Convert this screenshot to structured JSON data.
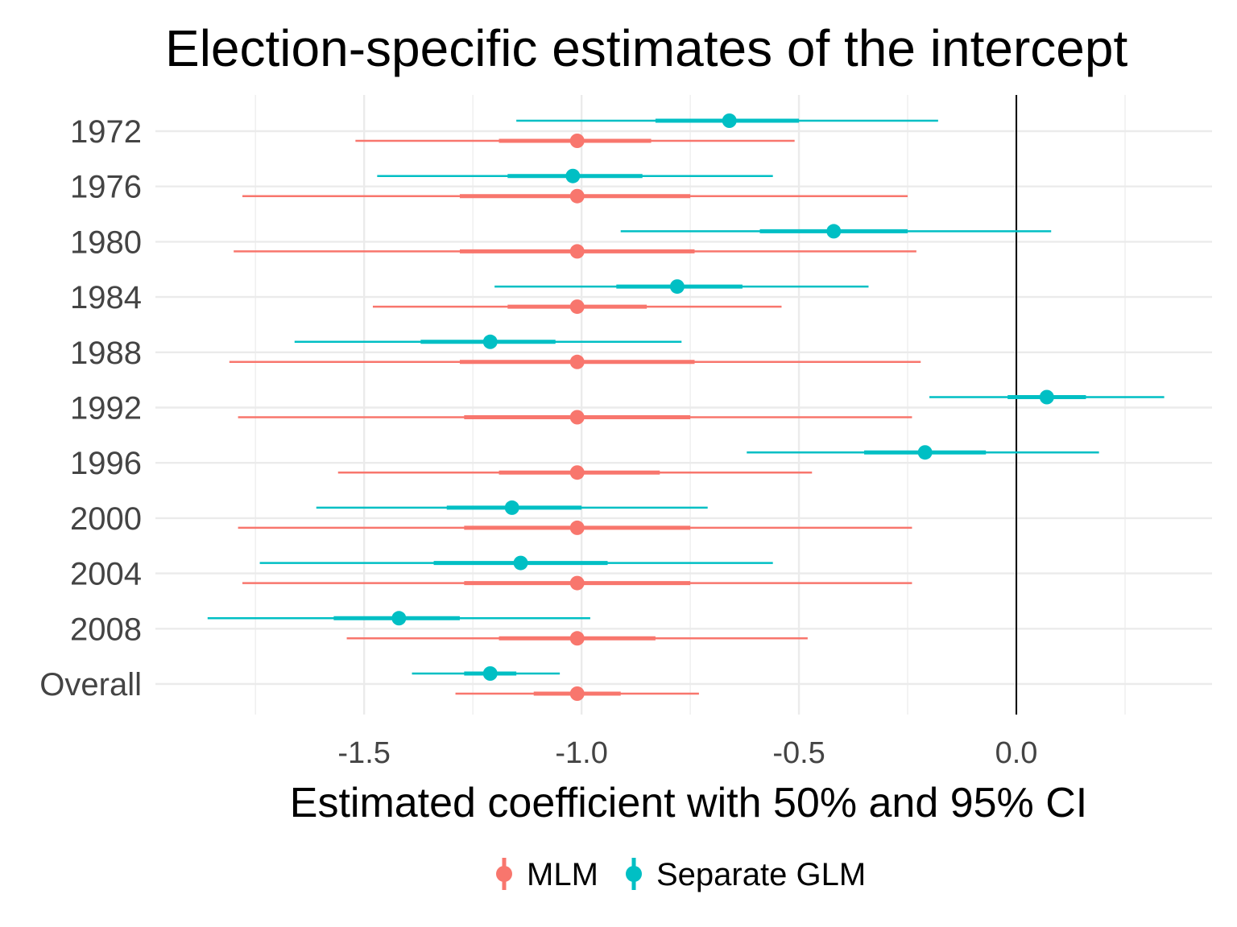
{
  "chart_data": {
    "type": "forest",
    "title": "Election-specific estimates of the intercept",
    "xlabel": "Estimated coefficient with 50% and 95% CI",
    "ylabel": "",
    "xlim": [
      -1.98,
      0.45
    ],
    "xticks": [
      -1.5,
      -1.0,
      -0.5,
      0.0
    ],
    "xtick_labels": [
      "-1.5",
      "-1.0",
      "-0.5",
      "0.0"
    ],
    "reference_line_x": 0.0,
    "grid": true,
    "legend_position": "bottom",
    "categories": [
      "1972",
      "1976",
      "1980",
      "1984",
      "1988",
      "1992",
      "1996",
      "2000",
      "2004",
      "2008",
      "Overall"
    ],
    "series": [
      {
        "name": "MLM",
        "color": "#F8766D",
        "points": [
          {
            "est": -1.01,
            "lo50": -1.19,
            "hi50": -0.84,
            "lo95": -1.52,
            "hi95": -0.51
          },
          {
            "est": -1.01,
            "lo50": -1.28,
            "hi50": -0.75,
            "lo95": -1.78,
            "hi95": -0.25
          },
          {
            "est": -1.01,
            "lo50": -1.28,
            "hi50": -0.74,
            "lo95": -1.8,
            "hi95": -0.23
          },
          {
            "est": -1.01,
            "lo50": -1.17,
            "hi50": -0.85,
            "lo95": -1.48,
            "hi95": -0.54
          },
          {
            "est": -1.01,
            "lo50": -1.28,
            "hi50": -0.74,
            "lo95": -1.81,
            "hi95": -0.22
          },
          {
            "est": -1.01,
            "lo50": -1.27,
            "hi50": -0.75,
            "lo95": -1.79,
            "hi95": -0.24
          },
          {
            "est": -1.01,
            "lo50": -1.19,
            "hi50": -0.82,
            "lo95": -1.56,
            "hi95": -0.47
          },
          {
            "est": -1.01,
            "lo50": -1.27,
            "hi50": -0.75,
            "lo95": -1.79,
            "hi95": -0.24
          },
          {
            "est": -1.01,
            "lo50": -1.27,
            "hi50": -0.75,
            "lo95": -1.78,
            "hi95": -0.24
          },
          {
            "est": -1.01,
            "lo50": -1.19,
            "hi50": -0.83,
            "lo95": -1.54,
            "hi95": -0.48
          },
          {
            "est": -1.01,
            "lo50": -1.11,
            "hi50": -0.91,
            "lo95": -1.29,
            "hi95": -0.73
          }
        ]
      },
      {
        "name": "Separate GLM",
        "color": "#00BFC4",
        "points": [
          {
            "est": -0.66,
            "lo50": -0.83,
            "hi50": -0.5,
            "lo95": -1.15,
            "hi95": -0.18
          },
          {
            "est": -1.02,
            "lo50": -1.17,
            "hi50": -0.86,
            "lo95": -1.47,
            "hi95": -0.56
          },
          {
            "est": -0.42,
            "lo50": -0.59,
            "hi50": -0.25,
            "lo95": -0.91,
            "hi95": 0.08
          },
          {
            "est": -0.78,
            "lo50": -0.92,
            "hi50": -0.63,
            "lo95": -1.2,
            "hi95": -0.34
          },
          {
            "est": -1.21,
            "lo50": -1.37,
            "hi50": -1.06,
            "lo95": -1.66,
            "hi95": -0.77
          },
          {
            "est": 0.07,
            "lo50": -0.02,
            "hi50": 0.16,
            "lo95": -0.2,
            "hi95": 0.34
          },
          {
            "est": -0.21,
            "lo50": -0.35,
            "hi50": -0.07,
            "lo95": -0.62,
            "hi95": 0.19
          },
          {
            "est": -1.16,
            "lo50": -1.31,
            "hi50": -1.0,
            "lo95": -1.61,
            "hi95": -0.71
          },
          {
            "est": -1.14,
            "lo50": -1.34,
            "hi50": -0.94,
            "lo95": -1.74,
            "hi95": -0.56
          },
          {
            "est": -1.42,
            "lo50": -1.57,
            "hi50": -1.28,
            "lo95": -1.86,
            "hi95": -0.98
          },
          {
            "est": -1.21,
            "lo50": -1.27,
            "hi50": -1.15,
            "lo95": -1.39,
            "hi95": -1.05
          }
        ]
      }
    ]
  }
}
